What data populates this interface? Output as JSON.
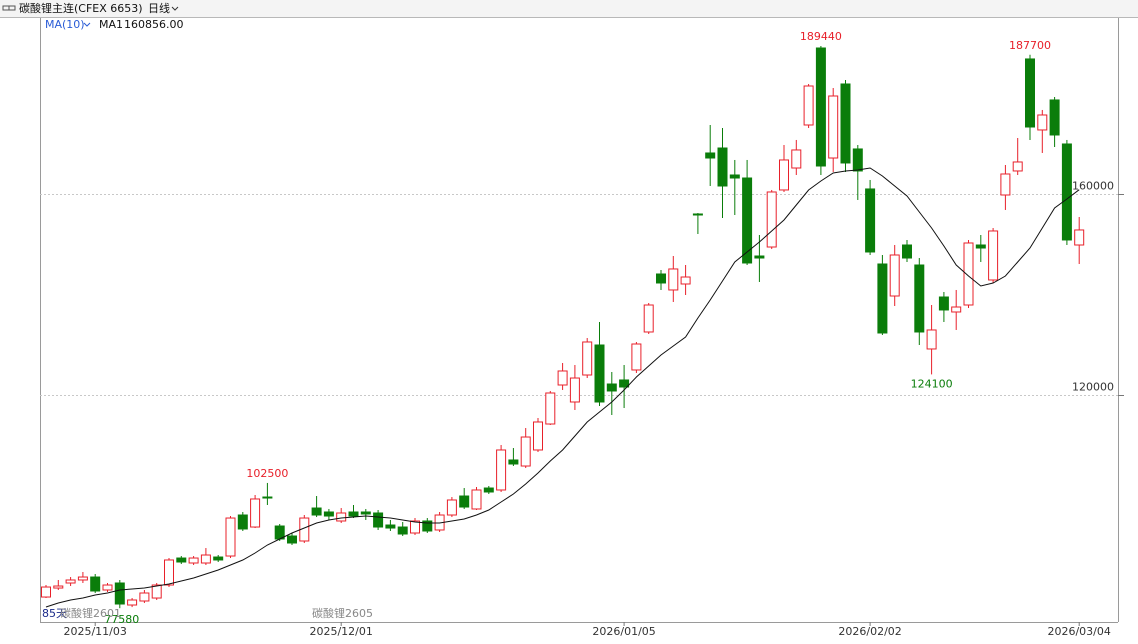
{
  "chart_data": {
    "type": "candlestick",
    "title": "碳酸锂主连(CFEX 6653)",
    "period": "日线",
    "categories": [
      null,
      null,
      null,
      null,
      "2025/11/03",
      null,
      null,
      null,
      null,
      null,
      null,
      null,
      null,
      null,
      null,
      null,
      null,
      null,
      null,
      null,
      null,
      null,
      null,
      null,
      "2025/12/01",
      null,
      null,
      null,
      null,
      null,
      null,
      null,
      null,
      null,
      null,
      null,
      null,
      null,
      null,
      null,
      null,
      null,
      null,
      null,
      null,
      null,
      null,
      "2026/01/05",
      null,
      null,
      null,
      null,
      null,
      null,
      null,
      null,
      null,
      null,
      null,
      null,
      null,
      null,
      null,
      null,
      null,
      null,
      null,
      "2026/02/02",
      null,
      null,
      null,
      null,
      null,
      null,
      null,
      null,
      null,
      null,
      null,
      null,
      null,
      null,
      null,
      null,
      "2026/03/04"
    ],
    "series": [
      {
        "up_color": "#e8202a",
        "down_color": "#0a7d0a",
        "open": [
          79800,
          81590,
          82590,
          83190,
          83780,
          81200,
          82590,
          78210,
          79010,
          79600,
          82190,
          87560,
          86570,
          86570,
          87760,
          87960,
          96120,
          93730,
          99700,
          93930,
          91940,
          90950,
          97510,
          96720,
          94930,
          96720,
          96720,
          96520,
          94130,
          93730,
          92540,
          94930,
          93140,
          96120,
          99900,
          97320,
          101490,
          101100,
          107070,
          105870,
          109060,
          114230,
          121990,
          118610,
          123980,
          129950,
          122190,
          122990,
          124980,
          132540,
          144080,
          140900,
          142090,
          156020,
          168160,
          169150,
          163780,
          163180,
          147660,
          149450,
          160800,
          165170,
          173730,
          189050,
          167160,
          181890,
          168960,
          161000,
          146070,
          139700,
          149850,
          145870,
          129160,
          139500,
          136520,
          137910,
          149850,
          142890,
          159800,
          164580,
          186870,
          172740,
          178710,
          169950,
          149850
        ],
        "high": [
          82190,
          83190,
          83780,
          84780,
          84380,
          82590,
          83190,
          79600,
          81200,
          82590,
          87560,
          87960,
          87960,
          89550,
          88160,
          95920,
          96720,
          100100,
          102500,
          94330,
          92540,
          96120,
          99900,
          97320,
          97510,
          98110,
          97320,
          97120,
          95130,
          94730,
          95520,
          95520,
          96720,
          99700,
          101490,
          101690,
          101890,
          110050,
          109450,
          113430,
          115420,
          120800,
          126370,
          125970,
          131340,
          134530,
          124580,
          125970,
          130550,
          138310,
          144880,
          147660,
          145870,
          156220,
          173730,
          173130,
          166770,
          166770,
          151840,
          160800,
          169750,
          170750,
          181890,
          189440,
          181090,
          182690,
          169750,
          162790,
          147860,
          149850,
          150850,
          147260,
          137910,
          140500,
          140900,
          150850,
          151840,
          153230,
          165770,
          171140,
          187700,
          176720,
          179300,
          170750,
          155420
        ],
        "low": [
          79600,
          81200,
          81990,
          82590,
          80600,
          80800,
          77580,
          77800,
          78610,
          79210,
          81790,
          86370,
          86170,
          86170,
          86770,
          87560,
          92940,
          93530,
          98110,
          90950,
          90150,
          90550,
          95720,
          95130,
          94530,
          95520,
          95130,
          93140,
          92940,
          91940,
          92140,
          92540,
          92740,
          95720,
          97320,
          97120,
          100300,
          100700,
          105870,
          105470,
          108660,
          114030,
          121000,
          117020,
          123380,
          117810,
          116020,
          117410,
          124380,
          132140,
          140900,
          138510,
          139900,
          152040,
          161590,
          155220,
          155820,
          145870,
          142490,
          149050,
          160400,
          163780,
          173130,
          163780,
          164380,
          164380,
          158810,
          147860,
          131940,
          137710,
          146470,
          129950,
          124100,
          134530,
          132940,
          137310,
          146470,
          142290,
          156820,
          163780,
          170750,
          168160,
          169350,
          149850,
          146070
        ],
        "close": [
          81790,
          81990,
          83190,
          83780,
          81000,
          82190,
          78410,
          79210,
          80600,
          82190,
          87170,
          86770,
          87560,
          88160,
          87170,
          95520,
          93340,
          99310,
          99500,
          91350,
          90550,
          95520,
          96120,
          95920,
          96520,
          95920,
          96320,
          93730,
          93530,
          92340,
          94930,
          92940,
          96120,
          99110,
          97710,
          101100,
          100700,
          109060,
          106270,
          111640,
          114630,
          120400,
          124780,
          123380,
          130550,
          118610,
          120800,
          121590,
          130150,
          137910,
          142290,
          145080,
          143480,
          155820,
          167160,
          161590,
          163180,
          146270,
          147260,
          160400,
          166770,
          168760,
          181490,
          165570,
          179500,
          166170,
          164580,
          148460,
          132340,
          147860,
          147260,
          132540,
          132940,
          136920,
          137510,
          150250,
          149250,
          152640,
          163980,
          166370,
          173330,
          175720,
          171740,
          150850,
          152840
        ]
      }
    ],
    "ma": {
      "name": "MA(10)",
      "line_name": "MA1",
      "last_label": "160856.00",
      "color": "#111111",
      "legend_color": "#2a5cd6",
      "values": [
        77810,
        78610,
        79210,
        79600,
        80200,
        80600,
        81200,
        81400,
        81590,
        81990,
        82390,
        82990,
        83580,
        84380,
        85180,
        86170,
        87170,
        88560,
        90150,
        91350,
        92540,
        93530,
        94530,
        95130,
        95520,
        95720,
        95920,
        95720,
        95520,
        95130,
        94730,
        94530,
        94530,
        94930,
        95330,
        96120,
        97120,
        98710,
        100300,
        102290,
        104480,
        106870,
        109060,
        111840,
        114630,
        116620,
        118610,
        121000,
        123580,
        125770,
        127960,
        129750,
        131540,
        135320,
        138910,
        142690,
        146470,
        148460,
        150450,
        152640,
        154830,
        157810,
        160800,
        162590,
        164180,
        164580,
        164780,
        165170,
        163580,
        161590,
        159600,
        156420,
        153230,
        149650,
        145870,
        143680,
        141690,
        142290,
        143680,
        146470,
        149250,
        153230,
        157210,
        159010,
        160856
      ]
    },
    "annotations": [
      "85天",
      "碳酸锂2601",
      "碳酸锂2605"
    ],
    "ylim": [
      74830,
      195020
    ],
    "yticks": [
      120000,
      160000
    ],
    "grid": true
  }
}
